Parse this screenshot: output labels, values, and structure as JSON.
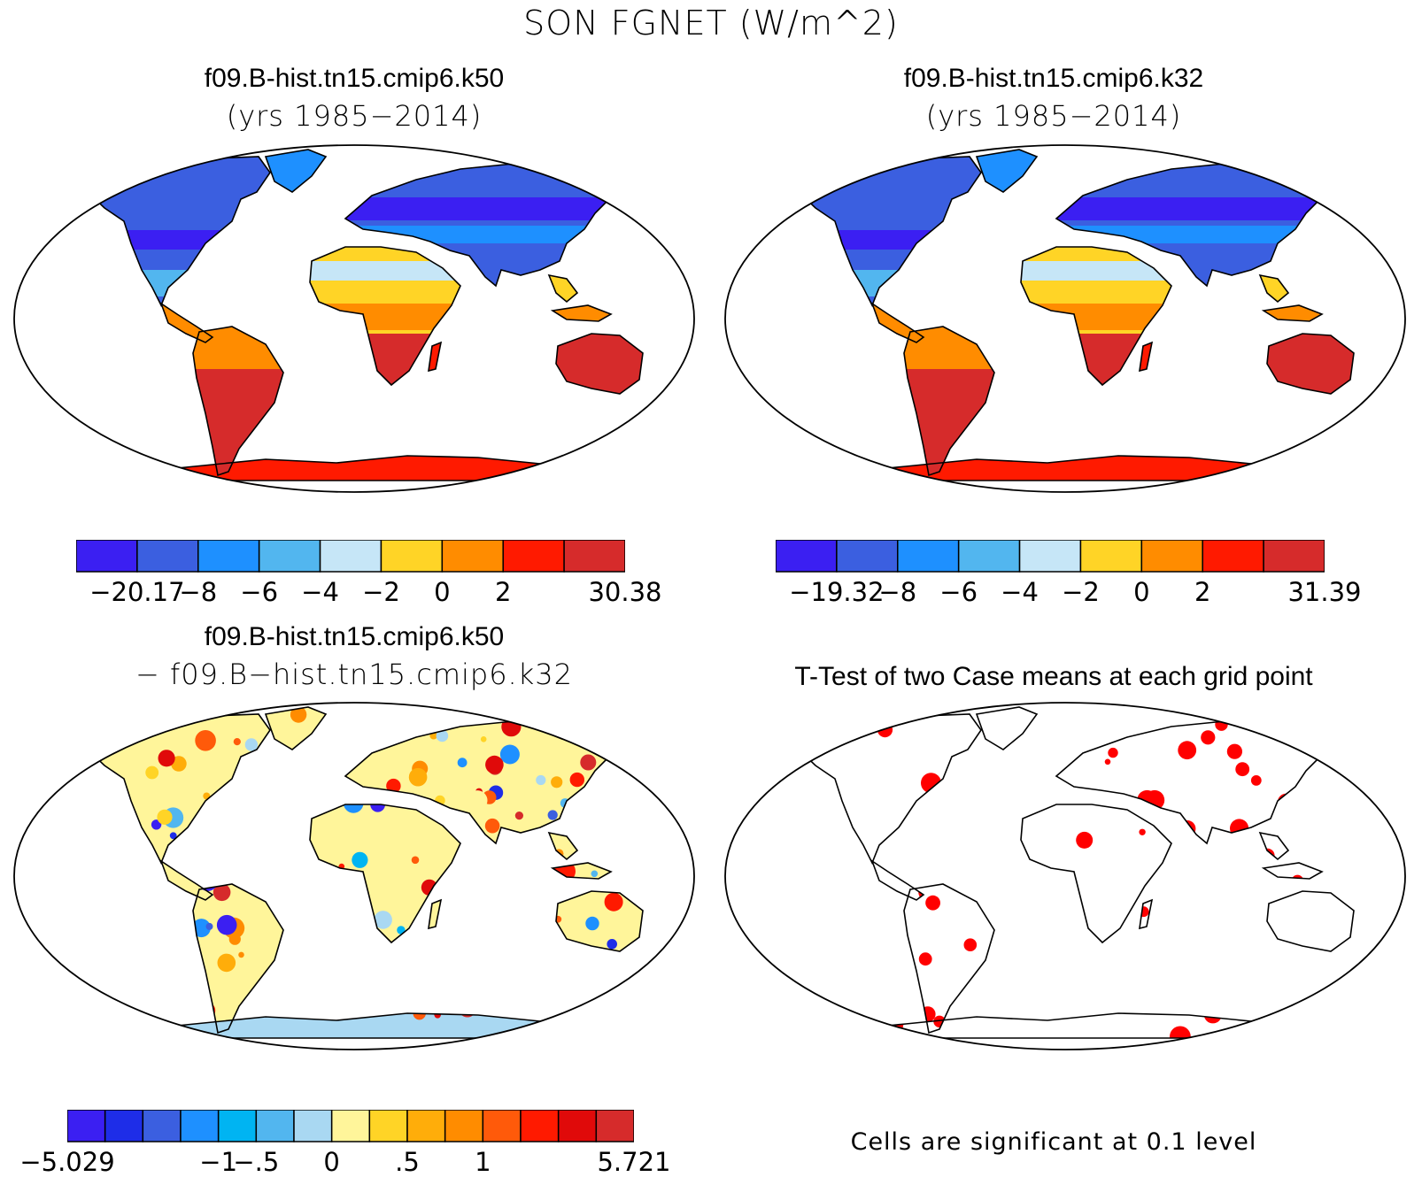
{
  "figure": {
    "title": "SON FGNET (W/m^2)"
  },
  "panels": [
    {
      "id": "k50",
      "title": "f09.B-hist.tn15.cmip6.k50",
      "subtitle": "(yrs 1985−2014)",
      "type": "map-filled-contour"
    },
    {
      "id": "k32",
      "title": "f09.B-hist.tn15.cmip6.k32",
      "subtitle": "(yrs 1985−2014)",
      "type": "map-filled-contour"
    },
    {
      "id": "diff",
      "title": "f09.B-hist.tn15.cmip6.k50",
      "subtitle": "− f09.B−hist.tn15.cmip6.k32",
      "type": "map-filled-contour"
    },
    {
      "id": "ttest",
      "title": "T-Test of two Case means at each grid point",
      "note": "Cells are significant at 0.1 level",
      "type": "map-significance"
    }
  ],
  "chart_data": [
    {
      "type": "heatmap",
      "panel": "k50",
      "colorbar": {
        "colors": [
          "#3b1ff2",
          "#3b5fe0",
          "#1e90ff",
          "#52b6ef",
          "#c6e6f7",
          "#ffd426",
          "#ff8c00",
          "#ff1a00",
          "#d62b2b"
        ],
        "labels": [
          "−20.17",
          "−8",
          "−6",
          "−4",
          "−2",
          "0",
          "2",
          "30.38"
        ],
        "min": -20.17,
        "max": 30.38,
        "levels": [
          -8,
          -6,
          -4,
          -2,
          0,
          2
        ]
      }
    },
    {
      "type": "heatmap",
      "panel": "k32",
      "colorbar": {
        "colors": [
          "#3b1ff2",
          "#3b5fe0",
          "#1e90ff",
          "#52b6ef",
          "#c6e6f7",
          "#ffd426",
          "#ff8c00",
          "#ff1a00",
          "#d62b2b"
        ],
        "labels": [
          "−19.32",
          "−8",
          "−6",
          "−4",
          "−2",
          "0",
          "2",
          "31.39"
        ],
        "min": -19.32,
        "max": 31.39,
        "levels": [
          -8,
          -6,
          -4,
          -2,
          0,
          2
        ]
      }
    },
    {
      "type": "heatmap",
      "panel": "diff",
      "colorbar": {
        "colors": [
          "#3b1ff2",
          "#1e2de8",
          "#3b5fe0",
          "#1e90ff",
          "#00b4f2",
          "#52b6ef",
          "#a9d8f2",
          "#fff59a",
          "#ffd426",
          "#ffad0a",
          "#ff8c00",
          "#ff5a0a",
          "#ff1a00",
          "#e00a0a",
          "#d62b2b"
        ],
        "labels": [
          "−5.029",
          "−1",
          "−.5",
          "0",
          ".5",
          "1",
          "5.721"
        ],
        "min": -5.029,
        "max": 5.721,
        "levels": [
          -1,
          -0.5,
          0,
          0.5,
          1
        ]
      }
    },
    {
      "type": "heatmap",
      "panel": "ttest",
      "significance_level": 0.1,
      "significant_color": "#ff0000"
    }
  ]
}
